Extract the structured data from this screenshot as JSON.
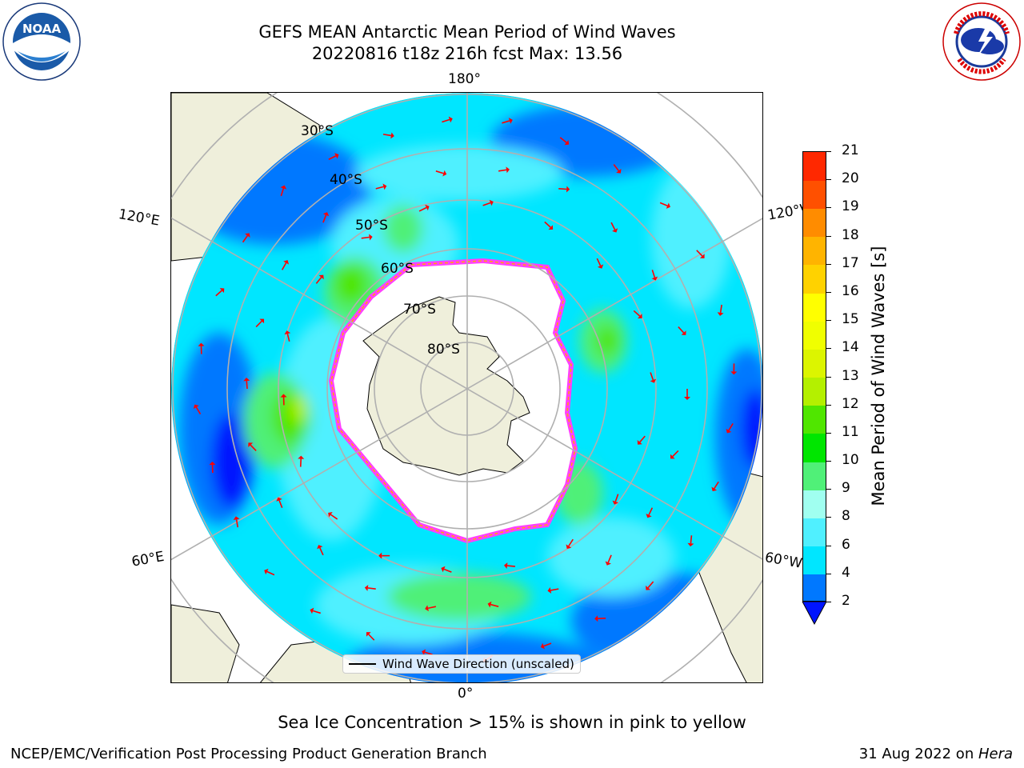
{
  "title": {
    "line1": "GEFS MEAN Antarctic Mean Period of Wind Waves",
    "line2": "20220816 t18z 216h fcst   Max: 13.56"
  },
  "logos": {
    "left": {
      "text": "NOAA",
      "ring_text": "NATIONAL OCEANIC AND ATMOSPHERIC ADMINISTRATION · U.S. DEPARTMENT OF COMMERCE"
    },
    "right": {
      "ring_text": "NATIONAL WEATHER SERVICE"
    }
  },
  "map": {
    "projection": "south-polar-stereographic",
    "meridian_labels": {
      "top": "180°",
      "bottom": "0°",
      "upper_left": "120°E",
      "upper_right": "120°W",
      "lower_left": "60°E",
      "lower_right": "60°W"
    },
    "latitude_labels": [
      "30°S",
      "40°S",
      "50°S",
      "60°S",
      "70°S",
      "80°S"
    ],
    "legend": {
      "label": "Wind Wave Direction (unscaled)",
      "line_color": "#000000"
    },
    "arrow_color": "#ff0000",
    "land_color": "#efefdb",
    "ice_edge_colors": [
      "#ff40ff",
      "#ffaa00",
      "#ffff40"
    ]
  },
  "colorbar": {
    "label": "Mean Period of Wind Waves [s]",
    "ticks": [
      "2",
      "4",
      "6",
      "8",
      "9",
      "10",
      "11",
      "12",
      "13",
      "14",
      "15",
      "16",
      "17",
      "18",
      "19",
      "20",
      "21"
    ],
    "colors": [
      "#0078ff",
      "#00e6ff",
      "#50f0ff",
      "#a0fff0",
      "#50f078",
      "#00e600",
      "#50e600",
      "#b4f000",
      "#dcf500",
      "#f0ff00",
      "#ffff00",
      "#ffd200",
      "#ffb400",
      "#ff8c00",
      "#ff5000",
      "#ff2800",
      "#ff0000"
    ],
    "under_color": "#0014ff"
  },
  "annotation": "Sea Ice Concentration > 15% is shown in pink to yellow",
  "footer": {
    "left": "NCEP/EMC/Verification Post Processing Product Generation Branch",
    "right_prefix": "31 Aug 2022 on ",
    "right_host": "Hera"
  }
}
